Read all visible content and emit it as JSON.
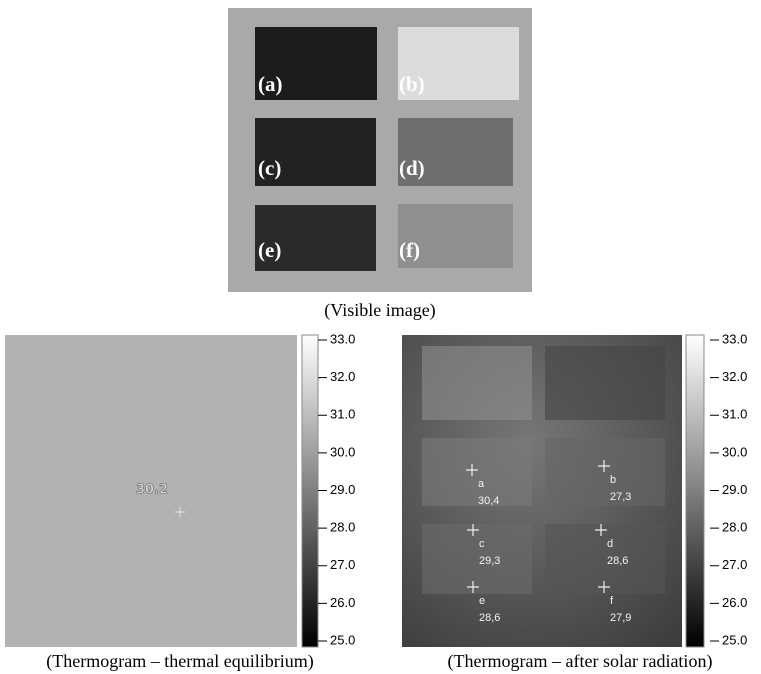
{
  "visible_image": {
    "caption": "(Visible image)",
    "samples": [
      "(a)",
      "(b)",
      "(c)",
      "(d)",
      "(e)",
      "(f)"
    ]
  },
  "thermogram_equilibrium": {
    "caption": "(Thermogram – thermal equilibrium)",
    "reading": "30.2",
    "scale": [
      "33.0",
      "32.0",
      "31.0",
      "30.0",
      "29.0",
      "28.0",
      "27.0",
      "26.0",
      "25.0"
    ]
  },
  "thermogram_solar": {
    "caption": "(Thermogram – after solar radiation)",
    "points": [
      {
        "label": "a",
        "reading": "30,4"
      },
      {
        "label": "b",
        "reading": "27,3"
      },
      {
        "label": "c",
        "reading": "29,3"
      },
      {
        "label": "d",
        "reading": "28,6"
      },
      {
        "label": "e",
        "reading": "28,6"
      },
      {
        "label": "f",
        "reading": "27,9"
      }
    ],
    "scale": [
      "33.0",
      "32.0",
      "31.0",
      "30.0",
      "29.0",
      "28.0",
      "27.0",
      "26.0",
      "25.0"
    ]
  }
}
